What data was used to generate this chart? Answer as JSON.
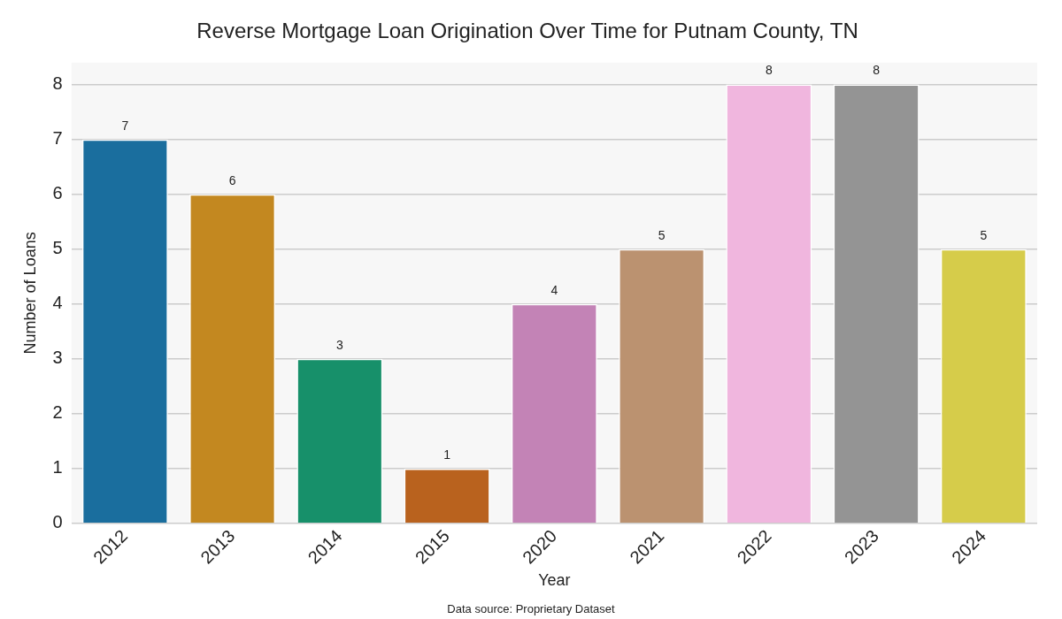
{
  "chart_data": {
    "type": "bar",
    "title": "Reverse Mortgage Loan Origination Over Time for Putnam County, TN",
    "xlabel": "Year",
    "ylabel": "Number of Loans",
    "categories": [
      "2012",
      "2013",
      "2014",
      "2015",
      "2020",
      "2021",
      "2022",
      "2023",
      "2024"
    ],
    "values": [
      7,
      6,
      3,
      1,
      4,
      5,
      8,
      8,
      5
    ],
    "colors": [
      "#1a6e9e",
      "#c38820",
      "#17906a",
      "#b9621e",
      "#c383b6",
      "#bb9270",
      "#f0b6de",
      "#949494",
      "#d6cc4a"
    ],
    "ylim": [
      0,
      8.4
    ],
    "yticks": [
      0,
      1,
      2,
      3,
      4,
      5,
      6,
      7,
      8
    ],
    "grid": "y",
    "legend": false,
    "data_labels": true,
    "annotations": [
      "Data source: Proprietary Dataset"
    ]
  }
}
